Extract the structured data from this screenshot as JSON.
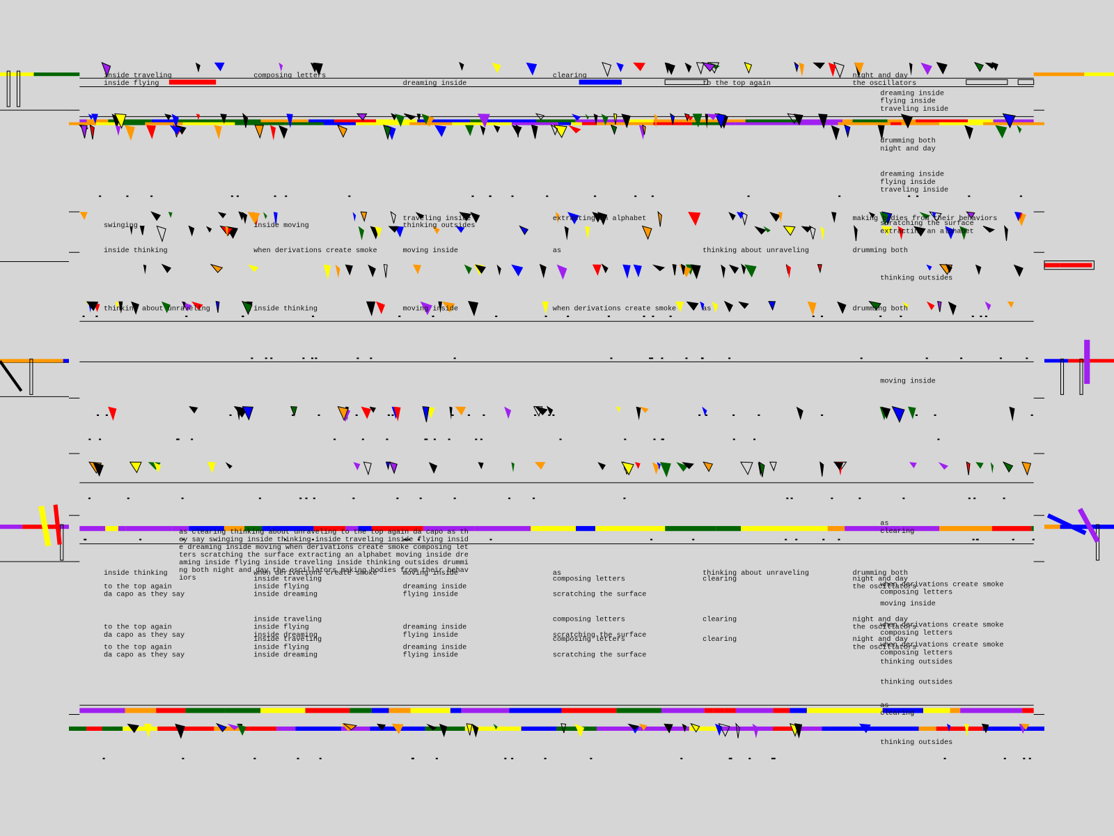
{
  "labels": [
    "inside traveling",
    "composing letters",
    "clearing",
    "night and day",
    "inside flying",
    "dreaming inside",
    "to the top again",
    "the oscillators",
    "dreaming inside",
    "flying inside",
    "traveling inside",
    "drumming both",
    "night and day",
    "dreaming inside",
    "flying inside",
    "traveling inside",
    "traveling inside",
    "extracting an alphabet",
    "making bodies from their behaviors",
    "swinging",
    "inside moving",
    "thinking outsides",
    "scratching the surface",
    "extracting an alphabet",
    "inside thinking",
    "when derivations create smoke",
    "moving inside",
    "as",
    "thinking about unraveling",
    "drumming both",
    "thinking outsides",
    "thinking about unraveling",
    "inside thinking",
    "moving inside",
    "when derivations create smoke",
    "as",
    "drumming both",
    "moving inside",
    "as",
    "clearing",
    "inside thinking",
    "when derivations create smoke",
    "moving inside",
    "as",
    "thinking about unraveling",
    "drumming both",
    "inside traveling",
    "composing letters",
    "clearing",
    "night and day",
    "to the top again",
    "inside flying",
    "dreaming inside",
    "the oscillators",
    "da capo as they say",
    "inside dreaming",
    "flying inside",
    "scratching the surface",
    "when derivations create smoke",
    "composing letters",
    "moving inside",
    "inside traveling",
    "composing letters",
    "clearing",
    "night and day",
    "to the top again",
    "inside flying",
    "dreaming inside",
    "the oscillators",
    "da capo as they say",
    "inside dreaming",
    "flying inside",
    "scratching the surface",
    "when derivations create smoke",
    "composing letters",
    "inside traveling",
    "composing letters",
    "clearing",
    "night and day",
    "to the top again",
    "inside flying",
    "dreaming inside",
    "the oscillators",
    "da capo as they say",
    "inside dreaming",
    "flying inside",
    "scratching the surface",
    "when derivations create smoke",
    "composing letters",
    "thinking outsides",
    "thinking outsides",
    "as",
    "clearing",
    "thinking outsides"
  ],
  "paragraph": [
    "as clearing thinking about unraveling to the top again da capo as th",
    "ey say swinging inside thinking inside traveling inside flying insid",
    "e dreaming inside moving when derivations create smoke composing let",
    "ters scratching the surface extracting an alphabet moving inside dre",
    "aming inside flying inside traveling inside thinking outsides drummi",
    "ng both night and day the oscillators making bodies from their behav",
    "iors"
  ]
}
